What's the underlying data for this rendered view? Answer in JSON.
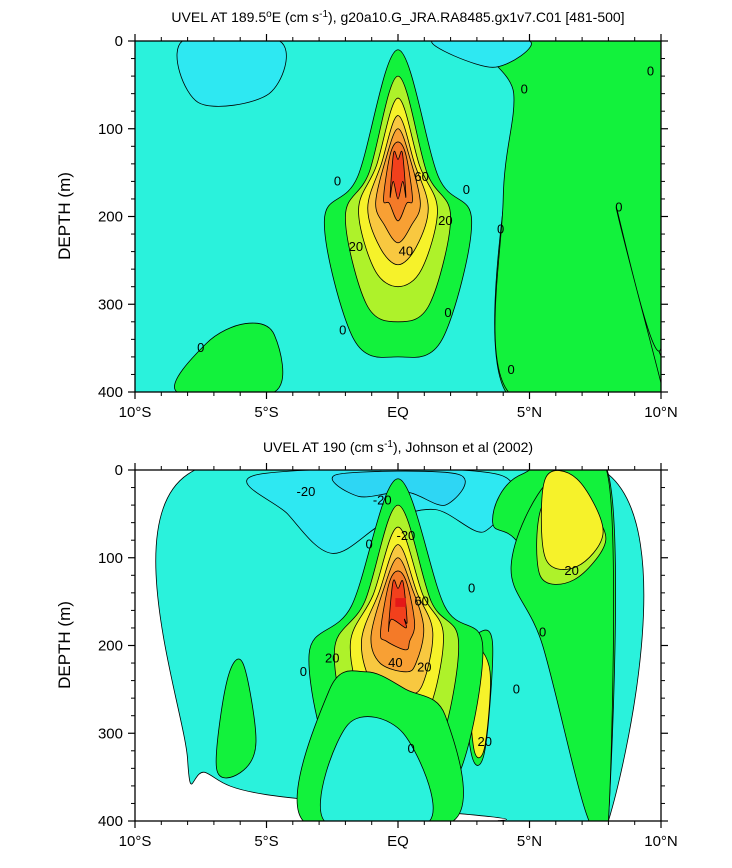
{
  "chart_data": [
    {
      "type": "contour",
      "title": "UVEL AT 189.5°E (cm s-1), g20a10.G_JRA.RA8485.gx1v7.C01 [481-500]",
      "title_parts": {
        "pre": "UVEL AT 189.5",
        "sup1": "o",
        "mid": "E (cm s",
        "sup2": "-1",
        "post": "), g20a10.G_JRA.RA8485.gx1v7.C01 [481-500]"
      },
      "ylabel": "DEPTH (m)",
      "xlabel": "",
      "xticks": [
        "10°S",
        "5°S",
        "EQ",
        "5°N",
        "10°N"
      ],
      "xvalues": [
        -10,
        -5,
        0,
        5,
        10
      ],
      "xlim": [
        -10,
        10
      ],
      "yticks": [
        "0",
        "100",
        "200",
        "300",
        "400"
      ],
      "yvalues": [
        0,
        100,
        200,
        300,
        400
      ],
      "ylim": [
        400,
        0
      ],
      "contour_interval": 10,
      "max_core": {
        "lat": 0,
        "depth": 150,
        "value": 80
      },
      "contour_labels": [
        {
          "text": "0",
          "lat": 2.6,
          "depth": 170
        },
        {
          "text": "0",
          "lat": 4.8,
          "depth": 55
        },
        {
          "text": "0",
          "lat": 9.6,
          "depth": 35
        },
        {
          "text": "0",
          "lat": 8.4,
          "depth": 190
        },
        {
          "text": "0",
          "lat": 3.9,
          "depth": 215
        },
        {
          "text": "0",
          "lat": -2.3,
          "depth": 160
        },
        {
          "text": "0",
          "lat": -2.1,
          "depth": 330
        },
        {
          "text": "0",
          "lat": 1.9,
          "depth": 310
        },
        {
          "text": "0",
          "lat": 4.3,
          "depth": 375
        },
        {
          "text": "0",
          "lat": -7.5,
          "depth": 350
        },
        {
          "text": "20",
          "lat": -1.6,
          "depth": 235
        },
        {
          "text": "20",
          "lat": 1.8,
          "depth": 205
        },
        {
          "text": "40",
          "lat": 0.3,
          "depth": 240
        },
        {
          "text": "60",
          "lat": 0.9,
          "depth": 155
        }
      ]
    },
    {
      "type": "contour",
      "title": "UVEL AT 190 (cm s-1), Johnson et al (2002)",
      "title_parts": {
        "pre": "UVEL AT 190 (cm s",
        "sup2": "-1",
        "post": "), Johnson et al (2002)"
      },
      "ylabel": "DEPTH (m)",
      "xlabel": "",
      "xticks": [
        "10°S",
        "5°S",
        "EQ",
        "5°N",
        "10°N"
      ],
      "xvalues": [
        -10,
        -5,
        0,
        5,
        10
      ],
      "xlim": [
        -10,
        10
      ],
      "yticks": [
        "0",
        "100",
        "200",
        "300",
        "400"
      ],
      "yvalues": [
        0,
        100,
        200,
        300,
        400
      ],
      "ylim": [
        400,
        0
      ],
      "data_extent_lat": [
        -8,
        8
      ],
      "contour_interval": 10,
      "max_core": {
        "lat": 0,
        "depth": 150,
        "value": 80
      },
      "contour_labels": [
        {
          "text": "-20",
          "lat": -3.5,
          "depth": 25
        },
        {
          "text": "-20",
          "lat": -0.6,
          "depth": 35
        },
        {
          "text": "-20",
          "lat": 0.3,
          "depth": 75
        },
        {
          "text": "0",
          "lat": -1.1,
          "depth": 85
        },
        {
          "text": "0",
          "lat": 2.8,
          "depth": 135
        },
        {
          "text": "0",
          "lat": 5.5,
          "depth": 185
        },
        {
          "text": "0",
          "lat": 4.5,
          "depth": 250
        },
        {
          "text": "0",
          "lat": -3.6,
          "depth": 230
        },
        {
          "text": "0",
          "lat": 0.5,
          "depth": 318
        },
        {
          "text": "20",
          "lat": -2.5,
          "depth": 215
        },
        {
          "text": "20",
          "lat": 1.0,
          "depth": 225
        },
        {
          "text": "20",
          "lat": 6.6,
          "depth": 115
        },
        {
          "text": "20",
          "lat": 3.3,
          "depth": 310
        },
        {
          "text": "40",
          "lat": -0.1,
          "depth": 220
        },
        {
          "text": "60",
          "lat": 0.9,
          "depth": 150
        }
      ]
    }
  ],
  "palette": {
    "neg20": "#2ed6f4",
    "neg10": "#2ee8f2",
    "cyan": "#2af2dc",
    "green": "#12f23c",
    "lime": "#aef22a",
    "yellow": "#f6f22a",
    "lightorange": "#f8c840",
    "orange": "#f8a034",
    "darkorange": "#f47a28",
    "red": "#f2401c",
    "core": "#e41818"
  }
}
